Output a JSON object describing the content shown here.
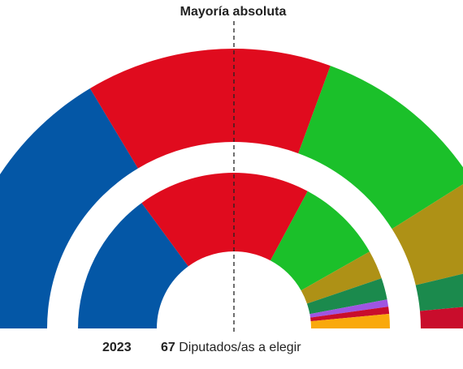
{
  "majority_label": "Mayoría absoluta",
  "footer": {
    "year": "2023",
    "seats_count": "67",
    "seats_text": "Diputados/as a elegir"
  },
  "colors": {
    "background": "#ffffff",
    "track": "#efefef",
    "majority_line": "#222222"
  },
  "chart_data": {
    "type": "pie",
    "subtype": "parliament-semicircle (two concentric rings)",
    "title": "",
    "majority_line": true,
    "rings": [
      {
        "name": "",
        "ring": "outer",
        "total_seats": 67,
        "slices": [
          {
            "party": "",
            "color": "#0457a6",
            "seats": 22
          },
          {
            "party": "",
            "color": "#e00b1e",
            "seats": 19
          },
          {
            "party": "",
            "color": "#1bc02a",
            "seats": 14
          },
          {
            "party": "",
            "color": "#ae9116",
            "seats": 7
          },
          {
            "party": "",
            "color": "#1b8a4d",
            "seats": 3
          },
          {
            "party": "",
            "color": "#c90d2c",
            "seats": 2
          }
        ]
      },
      {
        "name": "2023",
        "ring": "inner",
        "total_seats": 67,
        "slices": [
          {
            "party": "",
            "color": "#0457a6",
            "seats": 20
          },
          {
            "party": "",
            "color": "#e00b1e",
            "seats": 24
          },
          {
            "party": "",
            "color": "#1bc02a",
            "seats": 12
          },
          {
            "party": "",
            "color": "#ae9116",
            "seats": 4
          },
          {
            "party": "",
            "color": "#1b8a4d",
            "seats": 3
          },
          {
            "party": "",
            "color": "#9f55e2",
            "seats": 1
          },
          {
            "party": "",
            "color": "#c90d2c",
            "seats": 1
          },
          {
            "party": "",
            "color": "#f9a90c",
            "seats": 2
          }
        ]
      }
    ]
  }
}
